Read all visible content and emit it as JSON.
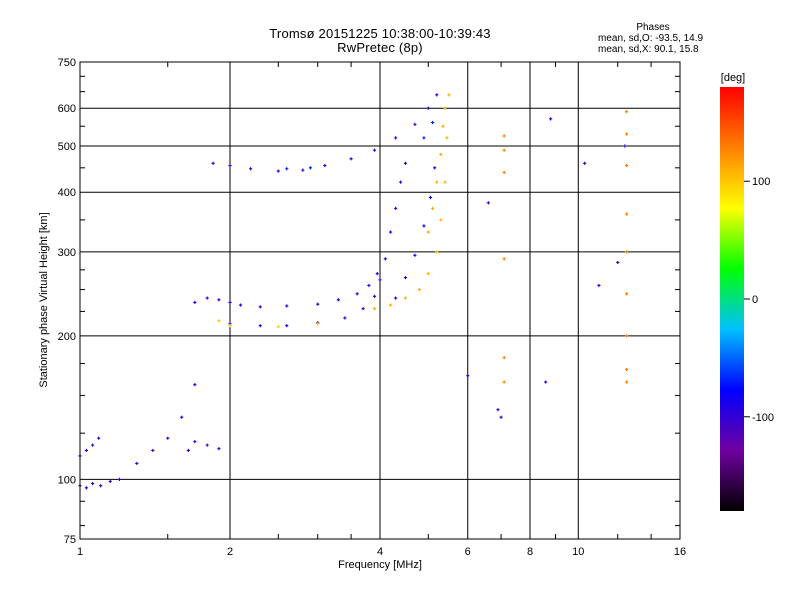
{
  "chart_data": {
    "type": "scatter",
    "title": "Tromsø 20151225 10:38:00-10:39:43",
    "subtitle": "RwPretec (8p)",
    "xlabel": "Frequency [MHz]",
    "ylabel": "Stationary phase Virtual Height [km]",
    "xscale": "log",
    "yscale": "log",
    "xlim": [
      1,
      16
    ],
    "ylim": [
      75,
      750
    ],
    "x_ticks": [
      "1",
      "2",
      "4",
      "6",
      "8",
      "10",
      "16"
    ],
    "y_ticks": [
      "75",
      "100",
      "200",
      "300",
      "400",
      "500",
      "600",
      "750"
    ],
    "grid": true,
    "colorbar": {
      "label": "[deg]",
      "range": [
        -180,
        180
      ],
      "ticks": [
        "100",
        "0",
        "-100"
      ],
      "colormap": [
        "#000000",
        "#7000a0",
        "#0000ff",
        "#00c0ff",
        "#00ff00",
        "#ffff00",
        "#ff8000",
        "#ff0000"
      ]
    },
    "stats": {
      "header": "Phases",
      "line_o": "mean, sd,O: -93.5, 14.9",
      "line_x": "mean, sd,X:  90.1, 15.8"
    },
    "traces": [
      {
        "component": "O",
        "phase_deg": -100,
        "x": [
          1.0,
          1.03,
          1.06,
          1.1,
          1.15
        ],
        "y": [
          97,
          96,
          98,
          97,
          99
        ]
      },
      {
        "component": "O",
        "phase_deg": -100,
        "x": [
          1.2,
          1.3,
          1.4,
          1.5,
          1.6,
          1.7
        ],
        "y": [
          100,
          108,
          115,
          122,
          135,
          158
        ]
      },
      {
        "component": "O",
        "phase_deg": -100,
        "x": [
          1.65,
          1.7,
          1.8,
          1.9
        ],
        "y": [
          115,
          120,
          118,
          116
        ]
      },
      {
        "component": "O",
        "phase_deg": -100,
        "x": [
          1.0,
          1.03,
          1.06,
          1.09
        ],
        "y": [
          112,
          115,
          118,
          122
        ]
      },
      {
        "component": "O",
        "phase_deg": -95,
        "x": [
          1.7,
          1.8,
          1.9,
          2.0,
          2.1,
          2.3,
          2.6,
          3.0,
          3.3,
          3.6,
          3.8,
          3.95
        ],
        "y": [
          235,
          240,
          238,
          235,
          232,
          230,
          231,
          233,
          238,
          245,
          255,
          270
        ]
      },
      {
        "component": "O",
        "phase_deg": -95,
        "x": [
          2.0,
          2.3,
          2.6,
          3.0,
          3.4,
          3.7,
          3.9,
          4.0,
          4.1,
          4.2,
          4.3,
          4.4,
          4.5
        ],
        "y": [
          212,
          210,
          210,
          213,
          218,
          228,
          242,
          262,
          290,
          330,
          370,
          420,
          460
        ]
      },
      {
        "component": "O",
        "phase_deg": -90,
        "x": [
          4.3,
          4.5,
          4.7,
          4.9,
          5.05,
          5.15
        ],
        "y": [
          240,
          265,
          295,
          340,
          390,
          450
        ]
      },
      {
        "component": "O",
        "phase_deg": -95,
        "x": [
          1.85,
          2.0,
          2.2,
          2.5,
          2.8,
          3.1,
          3.5,
          3.9,
          4.3,
          4.7,
          5.0,
          5.2
        ],
        "y": [
          460,
          455,
          448,
          443,
          445,
          455,
          470,
          490,
          520,
          555,
          600,
          640
        ]
      },
      {
        "component": "O",
        "phase_deg": -70,
        "x": [
          2.6,
          2.9,
          4.9,
          5.1
        ],
        "y": [
          448,
          450,
          520,
          560
        ]
      },
      {
        "component": "X",
        "phase_deg": 110,
        "x": [
          3.9,
          4.2,
          4.5,
          4.8,
          5.0,
          5.2,
          5.3,
          5.4,
          5.45,
          5.5
        ],
        "y": [
          228,
          232,
          240,
          250,
          270,
          300,
          350,
          420,
          520,
          640
        ]
      },
      {
        "component": "X",
        "phase_deg": 115,
        "x": [
          5.0,
          5.1,
          5.2,
          5.3,
          5.35,
          5.4
        ],
        "y": [
          330,
          370,
          420,
          480,
          550,
          600
        ]
      },
      {
        "component": "X",
        "phase_deg": 100,
        "x": [
          1.9,
          2.0,
          2.5,
          3.0
        ],
        "y": [
          215,
          210,
          209,
          212
        ]
      },
      {
        "component": "X",
        "phase_deg": 130,
        "x": [
          7.1,
          7.1,
          7.1,
          7.1,
          7.1,
          7.1,
          12.5,
          12.5,
          12.5,
          12.5,
          12.5,
          12.5,
          12.5,
          12.5,
          12.5
        ],
        "y": [
          525,
          490,
          440,
          290,
          180,
          160,
          590,
          530,
          455,
          360,
          300,
          245,
          200,
          170,
          160
        ]
      },
      {
        "component": "O",
        "phase_deg": -100,
        "x": [
          6.0,
          6.6,
          6.9,
          7.0,
          8.6,
          8.8,
          10.3,
          11.0,
          12.4,
          12.0
        ],
        "y": [
          165,
          380,
          140,
          135,
          160,
          570,
          460,
          255,
          500,
          285
        ]
      }
    ]
  }
}
